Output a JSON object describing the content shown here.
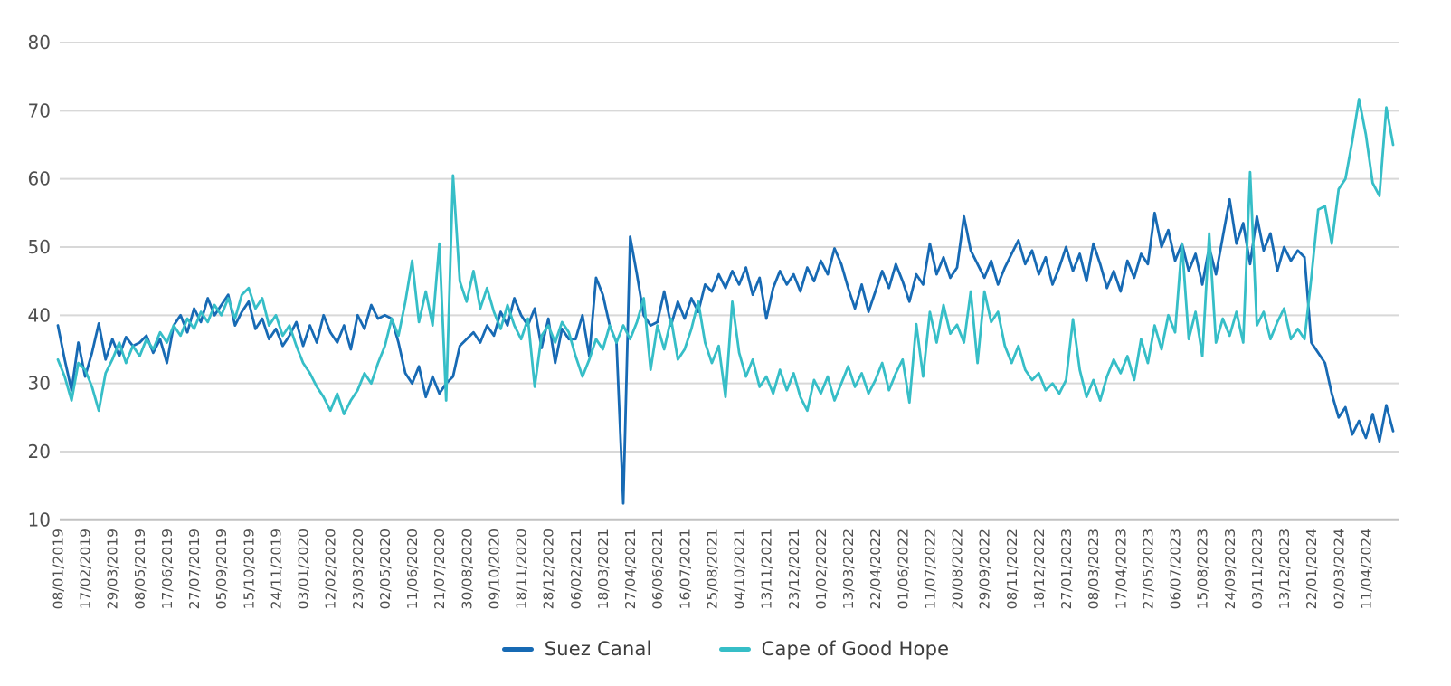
{
  "chart_data": {
    "type": "line",
    "title": "",
    "grid": true,
    "legend_position": "bottom-center",
    "ylim": [
      10,
      80
    ],
    "y_ticks": [
      80,
      70,
      60,
      50,
      40,
      30,
      20,
      10
    ],
    "points_per_tick": 4,
    "x_tick_labels": [
      "08/01/2019",
      "17/02/2019",
      "29/03/2019",
      "08/05/2019",
      "17/06/2019",
      "27/07/2019",
      "05/09/2019",
      "15/10/2019",
      "24/11/2019",
      "03/01/2020",
      "12/02/2020",
      "23/03/2020",
      "02/05/2020",
      "11/06/2020",
      "21/07/2020",
      "30/08/2020",
      "09/10/2020",
      "18/11/2020",
      "28/12/2020",
      "06/02/2021",
      "18/03/2021",
      "27/04/2021",
      "06/06/2021",
      "16/07/2021",
      "25/08/2021",
      "04/10/2021",
      "13/11/2021",
      "23/12/2021",
      "01/02/2022",
      "13/03/2022",
      "22/04/2022",
      "01/06/2022",
      "11/07/2022",
      "20/08/2022",
      "29/09/2022",
      "08/11/2022",
      "18/12/2022",
      "27/01/2023",
      "08/03/2023",
      "17/04/2023",
      "27/05/2023",
      "06/07/2023",
      "15/08/2023",
      "24/09/2023",
      "03/11/2023",
      "13/12/2023",
      "22/01/2024",
      "02/03/2024",
      "11/04/2024"
    ],
    "series": [
      {
        "name": "Suez Canal",
        "color": "#176ab4",
        "values": [
          38.5,
          33.5,
          29,
          36,
          31,
          34.5,
          38.8,
          33.5,
          36.5,
          34,
          36.8,
          35.5,
          36,
          37,
          34.5,
          36.5,
          33,
          38.5,
          40,
          37.5,
          41,
          39,
          42.5,
          40,
          41.5,
          43,
          38.5,
          40.5,
          42,
          38,
          39.5,
          36.5,
          38,
          35.5,
          37,
          39,
          35.5,
          38.5,
          36,
          40,
          37.5,
          36,
          38.5,
          35,
          40,
          38,
          41.5,
          39.5,
          40,
          39.5,
          36,
          31.5,
          30,
          32.5,
          28,
          31,
          28.5,
          30,
          31,
          35.5,
          36.5,
          37.5,
          36,
          38.5,
          37,
          40.5,
          38.5,
          42.5,
          40,
          38.5,
          41,
          35.2,
          39.5,
          33,
          38,
          36.5,
          36.5,
          40,
          34,
          45.5,
          43,
          38.5,
          36,
          12.4,
          51.5,
          46,
          40,
          38.5,
          39,
          43.5,
          38.5,
          42,
          39.5,
          42.5,
          40.5,
          44.5,
          43.5,
          46,
          44,
          46.5,
          44.5,
          47,
          43,
          45.5,
          39.5,
          44,
          46.5,
          44.5,
          46,
          43.5,
          47,
          45,
          48,
          46,
          49.8,
          47.5,
          44,
          41,
          44.5,
          40.5,
          43.5,
          46.5,
          44,
          47.5,
          45,
          42,
          46,
          44.5,
          50.5,
          46,
          48.5,
          45.5,
          47,
          54.5,
          49.5,
          47.5,
          45.5,
          48,
          44.5,
          47,
          49,
          51,
          47.5,
          49.5,
          46,
          48.5,
          44.5,
          47,
          50,
          46.5,
          49,
          45,
          50.5,
          47.5,
          44,
          46.5,
          43.5,
          48,
          45.5,
          49,
          47.5,
          55,
          50,
          52.5,
          48,
          50.5,
          46.5,
          49,
          44.5,
          50,
          46,
          51.5,
          57,
          50.5,
          53.5,
          47.5,
          54.5,
          49.5,
          52,
          46.5,
          50,
          48,
          49.5,
          48.5,
          36,
          34.5,
          33,
          28.5,
          25,
          26.5,
          22.5,
          24.5,
          22,
          25.5,
          21.5,
          26.8,
          23
        ]
      },
      {
        "name": "Cape of Good Hope",
        "color": "#36bec7",
        "values": [
          33.5,
          31,
          27.5,
          33,
          32,
          29.5,
          26,
          31.5,
          33.5,
          36,
          33,
          35.5,
          34,
          36.5,
          35,
          37.5,
          36,
          38.5,
          37,
          39.5,
          38,
          40.5,
          39,
          41.5,
          40,
          42.5,
          39.5,
          43,
          44,
          41,
          42.5,
          38.5,
          40,
          37,
          38.5,
          35.5,
          33,
          31.5,
          29.5,
          28,
          26,
          28.5,
          25.5,
          27.5,
          29,
          31.5,
          30,
          33,
          35.5,
          39.5,
          37,
          42,
          48,
          39,
          43.5,
          38.5,
          50.5,
          27.5,
          60.5,
          45,
          42,
          46.5,
          41,
          44,
          40.5,
          38,
          41.5,
          38.5,
          36.5,
          39.5,
          29.5,
          37,
          38.5,
          36,
          39,
          37.5,
          34,
          31,
          33.5,
          36.5,
          35,
          38.5,
          36,
          38.5,
          36.5,
          39,
          42.5,
          32,
          38.5,
          35,
          39.5,
          33.5,
          35,
          38,
          42,
          36,
          33,
          35.5,
          28,
          42,
          34.5,
          31,
          33.5,
          29.5,
          31,
          28.5,
          32,
          29,
          31.5,
          28,
          26,
          30.5,
          28.5,
          31,
          27.5,
          30,
          32.5,
          29.5,
          31.5,
          28.5,
          30.5,
          33,
          29,
          31.5,
          33.5,
          27.2,
          38.7,
          31,
          40.5,
          36,
          41.5,
          37.3,
          38.6,
          36,
          43.5,
          33,
          43.5,
          39,
          40.5,
          35.5,
          33,
          35.5,
          32,
          30.5,
          31.5,
          29,
          30,
          28.5,
          30.5,
          39.4,
          32,
          28,
          30.5,
          27.5,
          31,
          33.5,
          31.5,
          34,
          30.5,
          36.5,
          33,
          38.5,
          35,
          40,
          37.5,
          50.5,
          36.5,
          40.5,
          34,
          52,
          36,
          39.5,
          37,
          40.5,
          36,
          61,
          38.5,
          40.5,
          36.5,
          39,
          41,
          36.5,
          38,
          36.5,
          45.5,
          55.5,
          56,
          50.5,
          58.5,
          60,
          65.5,
          71.7,
          66.5,
          59.4,
          57.5,
          70.5,
          65
        ]
      }
    ]
  },
  "style": {
    "grid_color": "#d8d8d8",
    "axis_line_color": "#c2c2c2",
    "tick_label_color": "#4f4f4f",
    "legend_text_color": "#3d3d3d",
    "background": "#ffffff"
  }
}
